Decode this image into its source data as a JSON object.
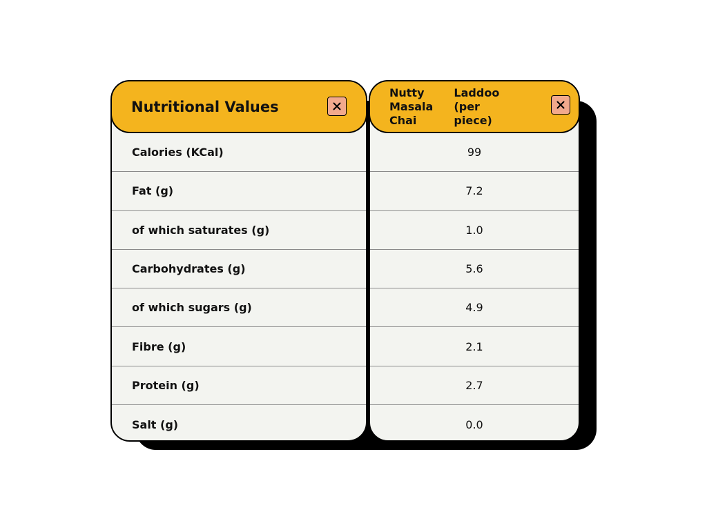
{
  "left_panel": {
    "title": "Nutritional Values",
    "close_icon": "close-icon",
    "rows": [
      "Calories (KCal)",
      "Fat (g)",
      "of which saturates (g)",
      "Carbohydrates (g)",
      "of which sugars (g)",
      "Fibre (g)",
      "Protein (g)",
      "Salt (g)"
    ]
  },
  "right_panel": {
    "title_line1": "Nutty Masala Chai",
    "title_line2": "Laddoo (per piece)",
    "close_icon": "close-icon",
    "values": [
      "99",
      "7.2",
      "1.0",
      "5.6",
      "4.9",
      "2.1",
      "2.7",
      "0.0"
    ]
  },
  "colors": {
    "header": "#f4b41e",
    "close_button": "#f2a98d",
    "panel_bg": "#f3f4f0",
    "shadow": "#000000"
  }
}
